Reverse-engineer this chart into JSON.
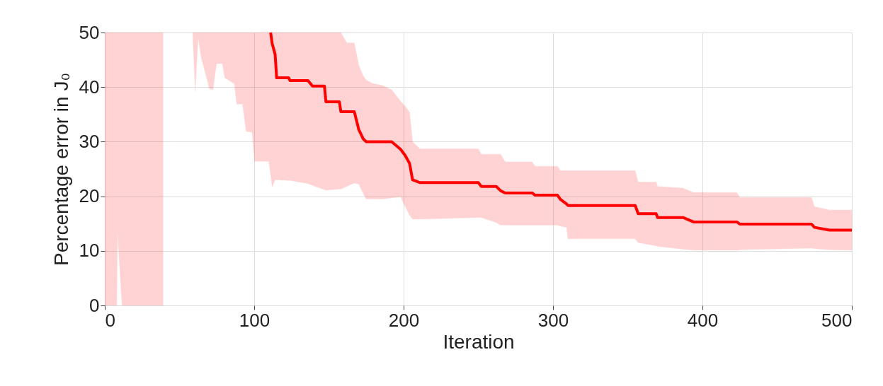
{
  "chart_data": {
    "type": "line",
    "xlabel": "Iteration",
    "ylabel": "Percentage error in J₀",
    "xlim": [
      0,
      500
    ],
    "ylim": [
      0,
      50
    ],
    "xticks": [
      0,
      100,
      200,
      300,
      400,
      500
    ],
    "yticks": [
      0,
      10,
      20,
      30,
      40,
      50
    ],
    "grid": true,
    "series": [
      {
        "color": "#ff0000",
        "x": [
          0,
          8,
          8.5,
          11.5,
          39,
          48,
          58.8,
          60.5,
          62.5,
          64.4,
          70,
          72.4,
          74.8,
          78.7,
          80.3,
          86.7,
          88.3,
          92.2,
          94.6,
          98.6,
          100.2,
          109.7,
          111,
          112,
          114,
          115,
          123,
          124,
          136,
          139,
          147,
          148,
          157,
          158,
          162,
          167,
          170,
          173,
          175,
          179,
          186,
          192,
          198,
          201,
          204,
          206,
          211,
          250,
          252,
          262,
          265,
          268,
          286,
          288,
          303,
          305,
          309,
          310,
          355,
          357,
          369,
          370,
          387,
          394,
          423,
          425,
          473,
          475,
          485,
          500
        ],
        "values": [
          null,
          null,
          null,
          null,
          null,
          null,
          null,
          null,
          null,
          null,
          null,
          null,
          null,
          null,
          null,
          null,
          null,
          null,
          null,
          null,
          null,
          null,
          50,
          48,
          46,
          41.7,
          41.7,
          41.2,
          41.2,
          40.2,
          40.2,
          37.3,
          37.3,
          35.5,
          35.5,
          35.5,
          32.2,
          30.5,
          30.0,
          30.0,
          30.0,
          30.0,
          28.6,
          27.5,
          26.0,
          23.0,
          22.5,
          22.5,
          21.8,
          21.8,
          21.0,
          20.6,
          20.6,
          20.2,
          20.2,
          19.4,
          18.6,
          18.3,
          18.3,
          16.8,
          16.8,
          16.1,
          16.1,
          15.3,
          15.3,
          14.9,
          14.9,
          14.3,
          13.8,
          13.8
        ],
        "lower": [
          0,
          0,
          13.4,
          0,
          0,
          null,
          50,
          39.2,
          49.1,
          45.6,
          39.7,
          39.5,
          44.3,
          44.3,
          41.7,
          40.6,
          36.9,
          36.9,
          31.9,
          31.7,
          26.4,
          26.4,
          24,
          21.7,
          23.0,
          23.0,
          22.9,
          22.9,
          22.3,
          22.0,
          21.2,
          21.1,
          21.3,
          21.3,
          21.8,
          22.4,
          22.2,
          20.5,
          19.5,
          19.5,
          19.5,
          19.7,
          19.9,
          18.1,
          16.5,
          15.8,
          15.8,
          16.1,
          16.1,
          15.2,
          14.7,
          14.7,
          14.7,
          14.7,
          14.7,
          14.5,
          14.3,
          12.2,
          12.2,
          11.5,
          10.9,
          10.8,
          10.3,
          10.1,
          10.1,
          10.2,
          10.5,
          10.4,
          10.2,
          10.1
        ],
        "upper": [
          50,
          50,
          50,
          50,
          50,
          null,
          50,
          50,
          50,
          50,
          50,
          50,
          50,
          50,
          50,
          50,
          50,
          50,
          50,
          50,
          50,
          50,
          50,
          50,
          50,
          50,
          50,
          50,
          50,
          50,
          50,
          50,
          50,
          50,
          48.1,
          48.1,
          44,
          42,
          41.3,
          40.7,
          40.3,
          39.5,
          37.4,
          36.5,
          35.4,
          30,
          28.7,
          28.7,
          27.7,
          27.7,
          27.7,
          26.3,
          26.3,
          25.5,
          25.5,
          24.7,
          24.7,
          24.7,
          24.7,
          22.6,
          22.6,
          21.8,
          21.5,
          20.7,
          20.7,
          19.8,
          19.8,
          18.1,
          17.5,
          17.5
        ]
      }
    ]
  }
}
